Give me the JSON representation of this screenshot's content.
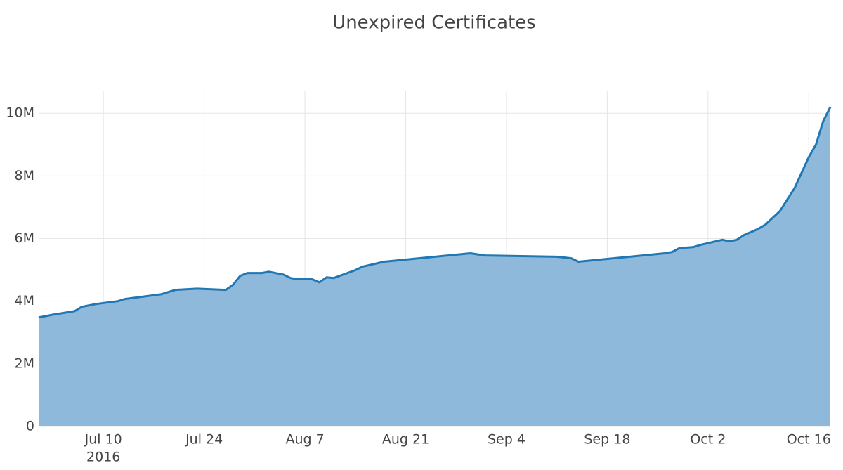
{
  "chart_data": {
    "type": "area",
    "title": "Unexpired Certificates",
    "x": [
      "2016-07-01",
      "2016-07-03",
      "2016-07-06",
      "2016-07-07",
      "2016-07-09",
      "2016-07-12",
      "2016-07-13",
      "2016-07-18",
      "2016-07-20",
      "2016-07-23",
      "2016-07-27",
      "2016-07-28",
      "2016-07-29",
      "2016-07-30",
      "2016-08-01",
      "2016-08-02",
      "2016-08-04",
      "2016-08-05",
      "2016-08-06",
      "2016-08-08",
      "2016-08-09",
      "2016-08-10",
      "2016-08-11",
      "2016-08-14",
      "2016-08-15",
      "2016-08-18",
      "2016-08-30",
      "2016-09-01",
      "2016-09-11",
      "2016-09-13",
      "2016-09-14",
      "2016-09-26",
      "2016-09-27",
      "2016-09-28",
      "2016-09-30",
      "2016-10-01",
      "2016-10-04",
      "2016-10-05",
      "2016-10-06",
      "2016-10-07",
      "2016-10-09",
      "2016-10-10",
      "2016-10-12",
      "2016-10-13",
      "2016-10-14",
      "2016-10-16",
      "2016-10-17",
      "2016-10-18",
      "2016-10-19"
    ],
    "series": [
      {
        "name": "Unexpired Certificates",
        "color": "#1f77b4",
        "fill": "#8fb9db",
        "values": [
          3480000,
          3570000,
          3680000,
          3820000,
          3910000,
          4000000,
          4070000,
          4220000,
          4360000,
          4400000,
          4360000,
          4520000,
          4810000,
          4900000,
          4900000,
          4940000,
          4850000,
          4740000,
          4700000,
          4700000,
          4600000,
          4760000,
          4740000,
          4990000,
          5100000,
          5260000,
          5530000,
          5460000,
          5420000,
          5370000,
          5260000,
          5530000,
          5570000,
          5690000,
          5730000,
          5800000,
          5960000,
          5910000,
          5960000,
          6110000,
          6310000,
          6450000,
          6880000,
          7240000,
          7600000,
          8600000,
          9000000,
          9750000,
          10200000
        ]
      }
    ],
    "xlim": [
      "2016-07-01",
      "2016-10-19"
    ],
    "xticks": [
      {
        "value": "2016-07-10",
        "label": "Jul 10"
      },
      {
        "value": "2016-07-24",
        "label": "Jul 24"
      },
      {
        "value": "2016-08-07",
        "label": "Aug 7"
      },
      {
        "value": "2016-08-21",
        "label": "Aug 21"
      },
      {
        "value": "2016-09-04",
        "label": "Sep 4"
      },
      {
        "value": "2016-09-18",
        "label": "Sep 18"
      },
      {
        "value": "2016-10-02",
        "label": "Oct 2"
      },
      {
        "value": "2016-10-16",
        "label": "Oct 16"
      }
    ],
    "x_year_label": "2016",
    "ylim": [
      0,
      10700000
    ],
    "yticks": [
      0,
      {
        "value": 2000000,
        "label": "2M"
      },
      {
        "value": 4000000,
        "label": "4M"
      },
      {
        "value": 6000000,
        "label": "6M"
      },
      {
        "value": 8000000,
        "label": "8M"
      },
      {
        "value": 10000000,
        "label": "10M"
      }
    ],
    "grid": true
  }
}
